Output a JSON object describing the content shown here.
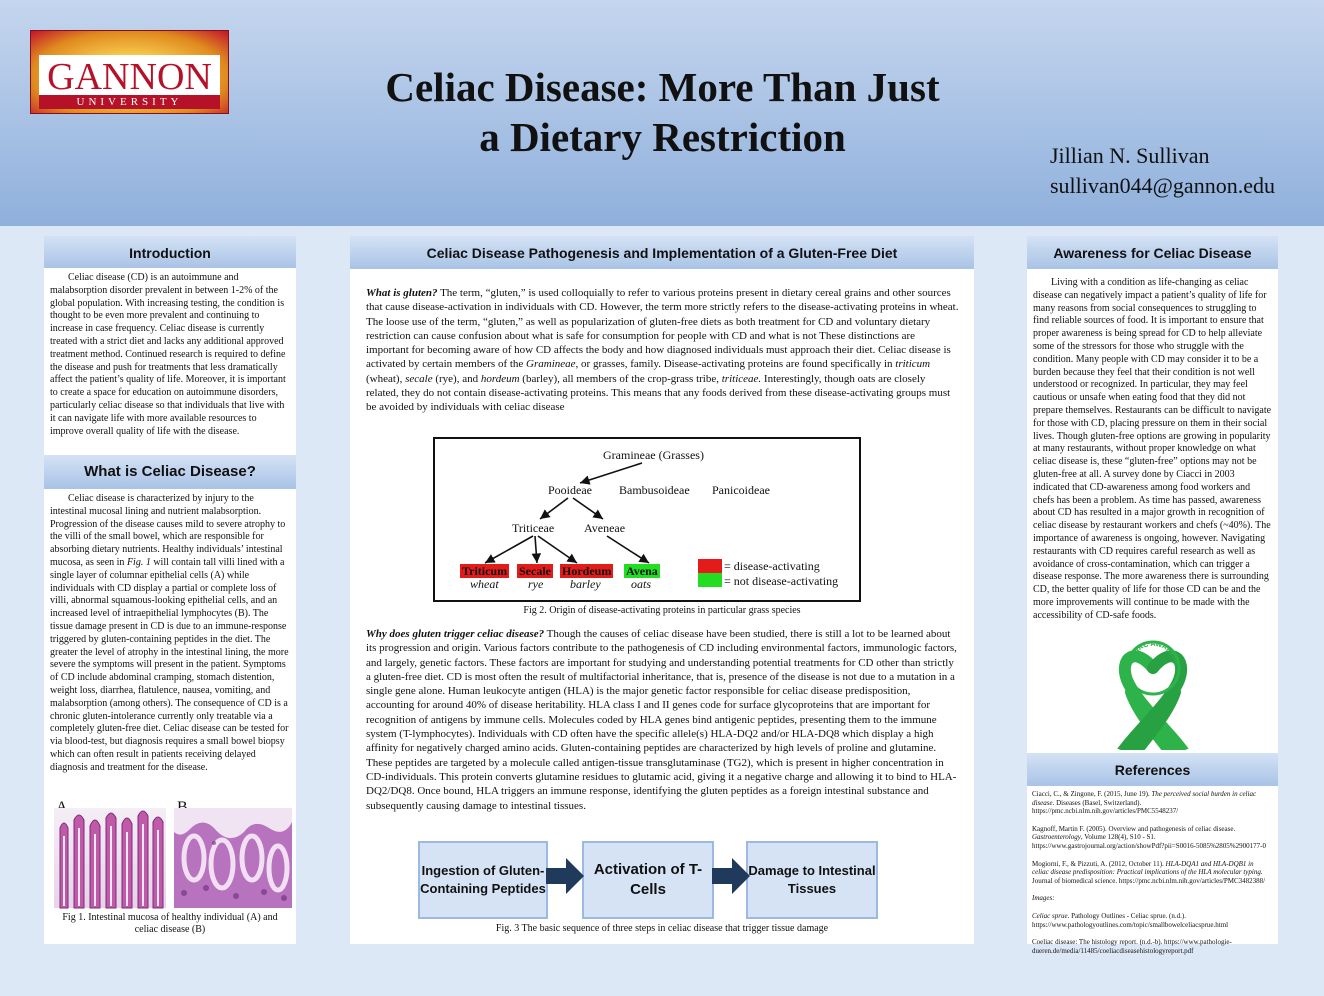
{
  "header": {
    "logo_name": "GANNON",
    "logo_sub": "UNIVERSITY",
    "title_line1": "Celiac Disease: More Than Just",
    "title_line2": "a Dietary Restriction",
    "author": "Jillian N. Sullivan",
    "email": "sullivan044@gannon.edu"
  },
  "intro": {
    "heading": "Introduction",
    "body": "Celiac disease (CD) is an autoimmune and malabsorption disorder prevalent in between 1-2% of the global population. With increasing testing, the condition is thought to be even more prevalent and continuing to increase in case frequency. Celiac disease is currently treated with a strict diet and lacks any additional approved treatment method. Continued research is required to define the disease and push for treatments that less dramatically affect the patient’s quality of life. Moreover, it is important to create a space for education on autoimmune disorders, particularly celiac disease so that individuals that live with it can navigate life with more available resources to improve overall quality of life with the disease."
  },
  "what": {
    "heading": "What is Celiac Disease?",
    "body1": "Celiac disease is characterized by injury to the intestinal mucosal lining and nutrient malabsorption. Progression of the disease causes mild to severe atrophy to the villi of the small bowel, which are responsible for absorbing dietary nutrients. Healthy individuals’ intestinal mucosa, as seen in ",
    "fig_ref": "Fig. 1",
    "body2": " will contain tall villi lined with a single layer of columnar epithelial cells (A) while individuals with CD display a partial or complete loss of villi, abnormal squamous-looking epithelial cells, and an increased level of intraepithelial lymphocytes (B). The tissue damage present in CD is due to an immune-response triggered by gluten-containing peptides in the diet. The greater the level of atrophy in the intestinal lining, the more severe the symptoms will present in the patient. Symptoms of CD include abdominal cramping, stomach distention, weight loss, diarrhea, flatulence, nausea, vomiting, and malabsorption (among others). The consequence of CD is a chronic gluten-intolerance currently only treatable via a completely gluten-free diet. Celiac disease can be tested for via blood-test, but diagnosis requires a small bowel biopsy which can often result in patients receiving delayed diagnosis and treatment for the disease.",
    "label_a": "A",
    "label_b": "B",
    "fig1_caption": "Fig 1. Intestinal mucosa of healthy individual (A) and celiac disease (B)"
  },
  "center": {
    "heading": "Celiac Disease Pathogenesis and Implementation of a Gluten-Free Diet",
    "p1_lead": "What is gluten?",
    "p1_a": " The term, “gluten,” is used colloquially to refer to various proteins present in dietary cereal grains and other sources that cause disease-activation in individuals with CD. However, the term more strictly refers to the disease-activating proteins in wheat. The loose use of the term, “gluten,” as well as popularization of gluten-free diets as both treatment for CD and voluntary dietary restriction can cause confusion about what is safe for consumption for people with CD and what is not These distinctions are important for becoming aware of how CD affects the body and how diagnosed individuals must approach their diet. Celiac disease is activated by certain members of the ",
    "p1_gram": "Gramineae",
    "p1_b": ", or grasses, family. Disease-activating proteins are found specifically in ",
    "p1_tri": "triticum",
    "p1_c": " (wheat), ",
    "p1_sec": "secale",
    "p1_d": " (rye), and ",
    "p1_hor": "hordeum",
    "p1_e": " (barley), all members of the crop-grass tribe, ",
    "p1_trib": "triticeae.",
    "p1_f": " Interestingly, though oats are closely related, they do not contain disease-activating proteins. This means that any foods derived from these disease-activating groups must be avoided by individuals with celiac disease",
    "tree": {
      "root": "Gramineae (Grasses)",
      "pooideae": "Pooideae",
      "bambusoideae": "Bambusoideae",
      "panicoideae": "Panicoideae",
      "triticeae": "Triticeae",
      "aveneae": "Aveneae",
      "triticum": "Triticum",
      "secale": "Secale",
      "hordeum": "Hordeum",
      "avena": "Avena",
      "wheat": "wheat",
      "rye": "rye",
      "barley": "barley",
      "oats": "oats",
      "legend_red": "= disease-activating",
      "legend_green": "= not disease-activating",
      "color_red": "#e41b1b",
      "color_green": "#22dd22"
    },
    "fig2_caption": "Fig 2. Origin of disease-activating proteins in particular grass species",
    "p2_lead": "Why does gluten trigger celiac disease?",
    "p2_body": " Though the causes of celiac disease have been studied, there is still a lot to be learned about its progression and origin. Various factors contribute to the pathogenesis of CD including environmental factors, immunologic factors, and largely, genetic factors. These factors are important for studying and understanding potential treatments for CD other than strictly a gluten-free diet. CD is most often the result of multifactorial inheritance, that is, presence of the disease is not due to a mutation in a single gene alone. Human leukocyte antigen (HLA) is the major genetic factor responsible for celiac disease predisposition, accounting for around 40% of disease heritability. HLA class I and II genes code for surface glycoproteins that are important for recognition of antigens by immune cells. Molecules coded by HLA genes bind antigenic peptides, presenting them to the immune system (T-lymphocytes). Individuals with CD often have the specific allele(s) HLA-DQ2 and/or HLA-DQ8 which display a high affinity for negatively charged amino acids. Gluten-containing peptides are characterized by high levels of proline and glutamine. These peptides are targeted by a molecule called antigen-tissue transglutaminase (TG2), which is present in higher concentration in CD-individuals. This protein converts glutamine residues to glutamic acid, giving it a negative charge and allowing it to bind to HLA-DQ2/DQ8. Once bound, HLA triggers an immune response, identifying the gluten peptides as a foreign intestinal substance and subsequently causing damage to intestinal tissues.",
    "flow": {
      "step1": "Ingestion of Gluten-Containing Peptides",
      "step2": "Activation of T-Cells",
      "step3": "Damage to Intestinal Tissues"
    },
    "fig3_caption": "Fig. 3 The basic sequence of three steps in celiac disease that trigger tissue damage"
  },
  "awareness": {
    "heading": "Awareness for Celiac Disease",
    "body": "Living with a condition as life-changing as celiac disease can negatively impact a patient’s quality of life for many reasons from social consequences to struggling to find reliable sources of food. It is important to ensure that proper awareness is being spread for CD to help alleviate some of the stressors for those who struggle with the condition. Many people with CD may consider it to be a burden because they feel that their condition is not well understood or recognized. In particular, they may feel cautious or unsafe when eating food that they did not prepare themselves. Restaurants can be difficult to navigate for those with CD, placing pressure on them in their social lives. Though gluten-free options are growing in popularity at many restaurants, without proper knowledge on what celiac disease is, these “gluten-free” options may not be gluten-free at all. A survey done by Ciacci in 2003 indicated that CD-awareness among food workers and chefs has been a problem. As time has passed, awareness about CD has resulted in a major growth in recognition of celiac disease by restaurant workers and chefs (~40%). The importance of awareness is ongoing, however. Navigating restaurants with CD requires careful research as well as avoidance of cross-contamination, which can trigger a disease response. The more awareness there is surrounding CD, the better quality of life for those CD can be and the more improvements will continue to be made with the accessibility of CD-safe foods.",
    "ribbon_text": "CELIAC AWARENESS",
    "ribbon_color": "#2eb34a"
  },
  "references": {
    "heading": "References",
    "r1_a": "Ciacci, C., & Zingone, F. (2015, June 19). ",
    "r1_it": "The perceived social burden in celiac disease.",
    "r1_b": " Diseases (Basel, Switzerland). https://pmc.ncbi.nlm.nih.gov/articles/PMC5548237/",
    "r2_a": "Kagnoff, Martin F. (2005). Overview and pathogenesis of celiac disease. ",
    "r2_it": "Gastroenterology",
    "r2_b": ", Volume 128(4), S10 - S1. https://www.gastrojournal.org/action/showPdf?pii=S0016-5085%2805%2900177-0",
    "r3_a": "Mogiorni, F., & Pizzuti, A. (2012, October 11). ",
    "r3_it": "HLA-DQA1 and HLA-DQB1 in celiac disease predisposition: Practical implications of the HLA molecular typing.",
    "r3_b": " Journal of biomedical science. https://pmc.ncbi.nlm.nih.gov/articles/PMC3482388/",
    "images_label": "Images:",
    "r4_it": "Celiac sprue.",
    "r4_b": " Pathology Outlines - Celiac sprue. (n.d.). https://www.pathologyoutlines.com/topic/smallbowelceliacsprue.html",
    "r5": "Coeliac disease: The histology report. (n.d.-b). https://www.pathologie-dueren.de/media/11485/coeliacdiseasehistologyreport.pdf"
  }
}
